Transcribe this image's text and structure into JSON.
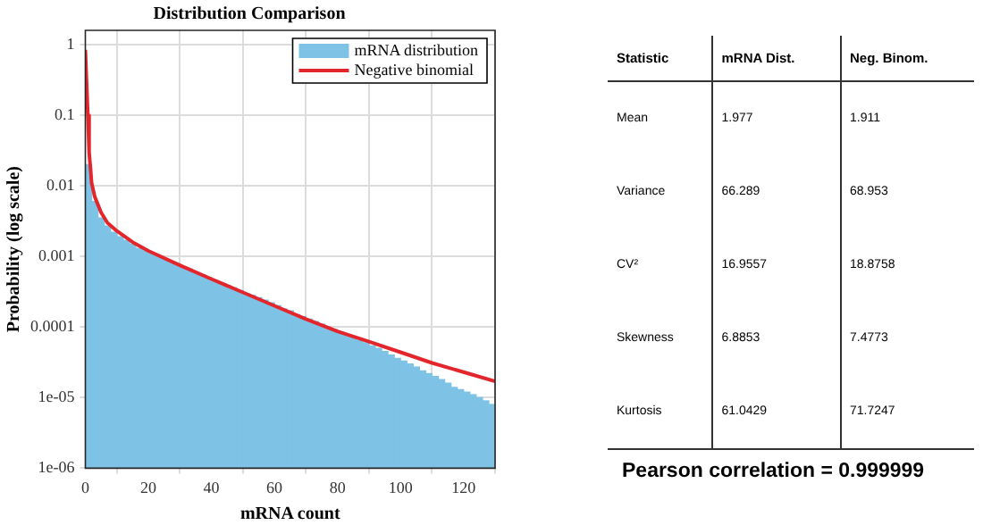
{
  "chart_data": [
    {
      "type": "histogram",
      "title": "Distribution Comparison",
      "xlabel": "mRNA count",
      "ylabel": "Probability (log scale)",
      "log": "y",
      "grid": true,
      "legend": "top right",
      "bins": [
        0,
        2,
        4,
        6,
        8,
        10,
        12,
        14,
        16,
        18,
        20,
        22,
        24,
        26,
        28,
        30,
        32,
        34,
        36,
        38,
        40,
        42,
        44,
        46,
        48,
        50,
        52,
        54,
        56,
        58,
        60,
        62,
        64,
        66,
        68,
        70,
        72,
        74,
        76,
        78,
        80,
        82,
        84,
        86,
        88,
        90,
        92,
        94,
        96,
        98,
        100,
        102,
        104,
        106,
        108,
        110,
        112,
        114,
        116,
        118,
        120,
        122,
        124,
        126,
        128,
        130
      ],
      "series": [
        {
          "name": "mRNA distribution",
          "color": "#7ec2e6",
          "values": [
            0.02,
            0.006,
            0.0035,
            0.0027,
            0.0022,
            0.0019,
            0.0017,
            0.0015,
            0.0013,
            0.0012,
            0.0011,
            0.001,
            0.00092,
            0.00085,
            0.00078,
            0.00072,
            0.00066,
            0.0006,
            0.00055,
            0.0005,
            0.00046,
            0.00042,
            0.00039,
            0.00036,
            0.00033,
            0.0003,
            0.00028,
            0.00026,
            0.00024,
            0.00022,
            0.0002,
            0.00018,
            0.00017,
            0.00015,
            0.00014,
            0.00013,
            0.00012,
            0.00011,
            0.0001,
            9.2e-05,
            8.5e-05,
            7.8e-05,
            7.1e-05,
            6.5e-05,
            6e-05,
            5.4e-05,
            5e-05,
            4.5e-05,
            4e-05,
            3.6e-05,
            3.3e-05,
            3e-05,
            2.7e-05,
            2.4e-05,
            2.2e-05,
            2e-05,
            1.8e-05,
            1.6e-05,
            1.4e-05,
            1.3e-05,
            1.2e-05,
            1.1e-05,
            1e-05,
            9e-06,
            8e-06
          ]
        },
        {
          "name": "Negative binomial",
          "type": "line",
          "color": "#e3262b",
          "marker": "none",
          "x": [
            0,
            0.8,
            1.2,
            2,
            3,
            5,
            7,
            10,
            15,
            20,
            30,
            40,
            50,
            60,
            70,
            80,
            90,
            100,
            110,
            120,
            130
          ],
          "values": [
            0.85,
            0.1,
            0.03,
            0.011,
            0.007,
            0.0042,
            0.003,
            0.0023,
            0.0016,
            0.0012,
            0.00075,
            0.00048,
            0.00031,
            0.0002,
            0.00013,
            8.7e-05,
            6.2e-05,
            4.4e-05,
            3.1e-05,
            2.3e-05,
            1.7e-05
          ]
        }
      ],
      "xlim": [
        0,
        130
      ],
      "xticks": [
        0,
        20,
        40,
        60,
        80,
        100,
        120
      ],
      "ylim": [
        1e-06,
        1.6
      ],
      "yticks": [
        1,
        0.1,
        0.01,
        0.001,
        0.0001,
        {
          "value": 1e-05,
          "label": "1e-05"
        },
        {
          "value": 1e-06,
          "label": "1e-06"
        }
      ]
    },
    {
      "type": "other",
      "categories": [
        "Statistic",
        "mRNA Dist.",
        "Neg. Binom."
      ],
      "y_categories": [
        "Mean",
        "Variance",
        "CV²",
        "Skewness",
        "Kurtosis"
      ],
      "cell_labels": [
        [
          "1.977",
          "1.911"
        ],
        [
          "66.289",
          "68.953"
        ],
        [
          "16.9557",
          "18.8758"
        ],
        [
          "6.8853",
          "7.4773"
        ],
        [
          "61.0429",
          "71.7247"
        ]
      ],
      "annotations": [
        "Pearson correlation = 0.999999"
      ]
    }
  ]
}
